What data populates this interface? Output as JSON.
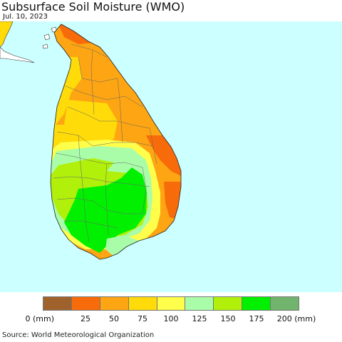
{
  "header": {
    "title": "Subsurface Soil Moisture (WMO)",
    "date": "Jul. 10, 2023"
  },
  "legend": {
    "colors": [
      "#a0622d",
      "#f86b0a",
      "#fda512",
      "#fedb09",
      "#fefe4b",
      "#a9fda9",
      "#b0f00b",
      "#00f000",
      "#70b46e"
    ],
    "labels": [
      "0 (mm)",
      "25",
      "50",
      "75",
      "100",
      "125",
      "150",
      "175",
      "200 (mm)"
    ]
  },
  "map": {
    "region": "Sri Lanka",
    "sea_color": "#ccffff",
    "neighbor_land_color": "#ffffff"
  },
  "footer": {
    "source": "Source: World Meteorological Organization"
  }
}
